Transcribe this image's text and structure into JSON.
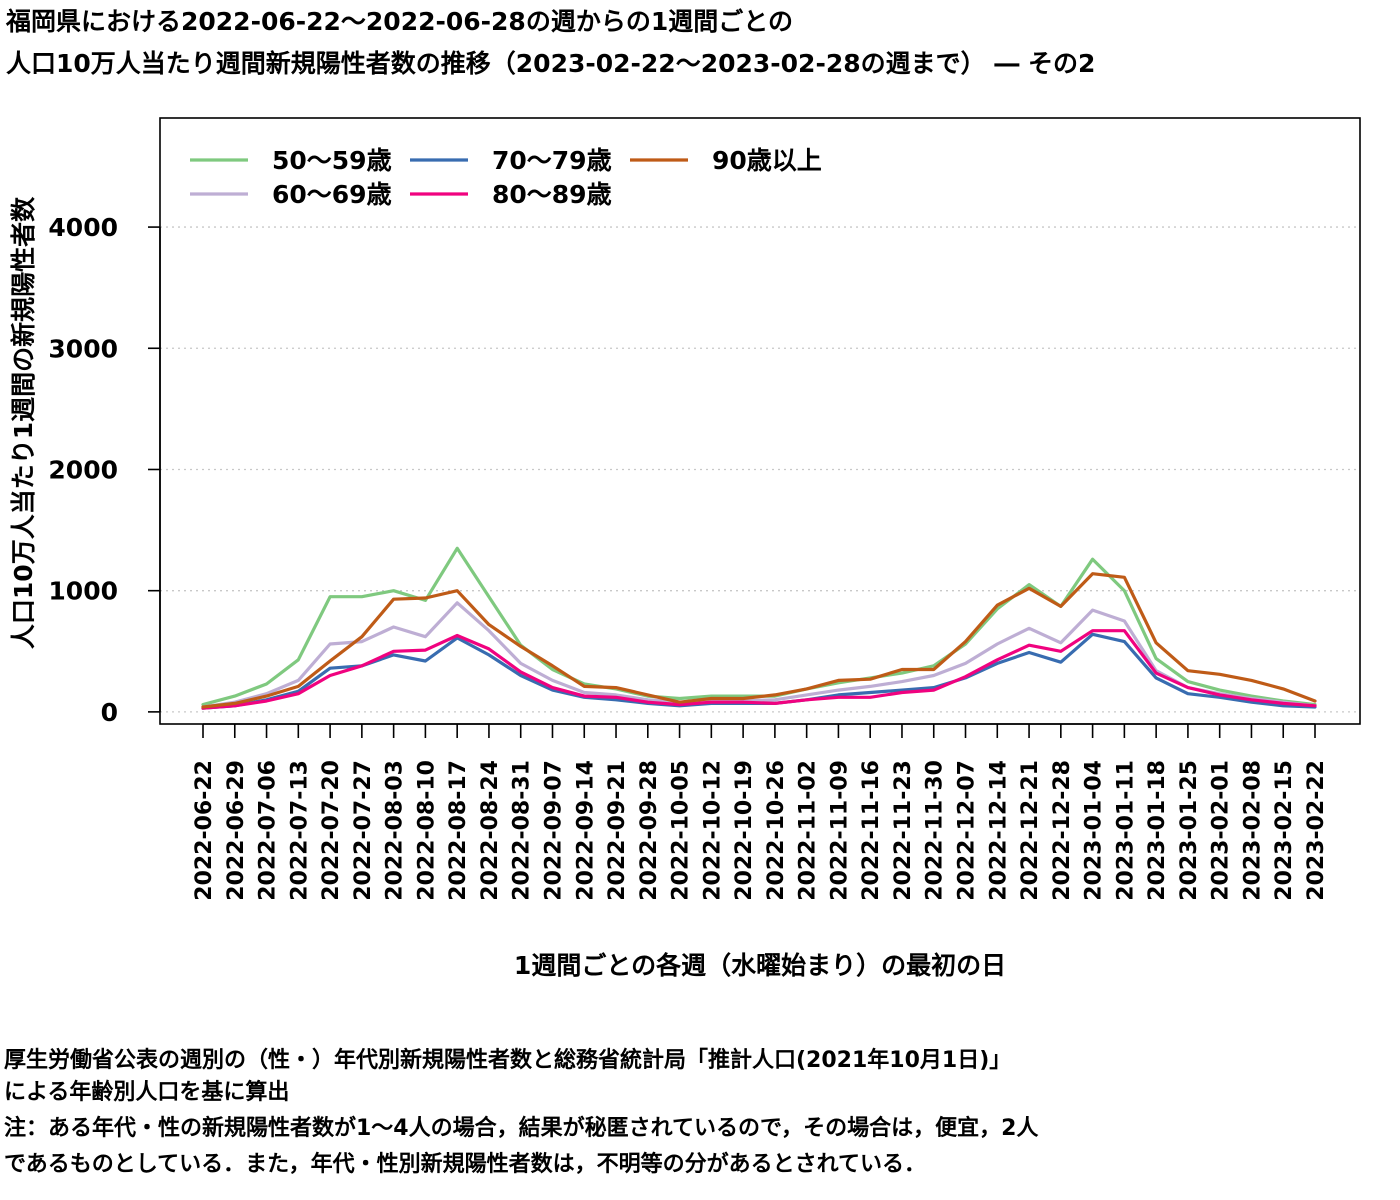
{
  "title_line1": "福岡県における2022-06-22～2022-06-28の週からの1週間ごとの",
  "title_line2": "人口10万人当たり週間新規陽性者数の推移（2023-02-22～2023-02-28の週まで） ― その2",
  "notes": [
    "厚生労働省公表の週別の（性・）年代別新規陽性者数と総務省統計局「推計人口(2021年10月1日)」",
    "による年齢別人口を基に算出",
    "注：ある年代・性の新規陽性者数が1～4人の場合，結果が秘匿されているので，その場合は，便宜，2人",
    "であるものとしている．また，年代・性別新規陽性者数は，不明等の分があるとされている．"
  ],
  "chart_data": {
    "type": "line",
    "xlabel": "1週間ごとの各週（水曜始まり）の最初の日",
    "ylabel": "人口10万人当たり1週間の新規陽性者数",
    "ylim": [
      -100,
      4900
    ],
    "yticks": [
      0,
      1000,
      2000,
      3000,
      4000
    ],
    "grid": "horizontal dotted",
    "legend_position": "top-left",
    "x": [
      "2022-06-22",
      "2022-06-29",
      "2022-07-06",
      "2022-07-13",
      "2022-07-20",
      "2022-07-27",
      "2022-08-03",
      "2022-08-10",
      "2022-08-17",
      "2022-08-24",
      "2022-08-31",
      "2022-09-07",
      "2022-09-14",
      "2022-09-21",
      "2022-09-28",
      "2022-10-05",
      "2022-10-12",
      "2022-10-19",
      "2022-10-26",
      "2022-11-02",
      "2022-11-09",
      "2022-11-16",
      "2022-11-23",
      "2022-11-30",
      "2022-12-07",
      "2022-12-14",
      "2022-12-21",
      "2022-12-28",
      "2023-01-04",
      "2023-01-11",
      "2023-01-18",
      "2023-01-25",
      "2023-02-01",
      "2023-02-08",
      "2023-02-15",
      "2023-02-22"
    ],
    "series": [
      {
        "name": "50～59歳",
        "color": "#7fc97f",
        "values": [
          60,
          130,
          230,
          430,
          950,
          950,
          1000,
          920,
          1350,
          950,
          550,
          350,
          230,
          190,
          130,
          110,
          130,
          130,
          130,
          190,
          240,
          280,
          320,
          380,
          560,
          850,
          1050,
          870,
          1260,
          1000,
          440,
          250,
          180,
          130,
          90,
          60
        ]
      },
      {
        "name": "60～69歳",
        "color": "#beaed4",
        "values": [
          40,
          80,
          150,
          260,
          560,
          580,
          700,
          620,
          900,
          670,
          400,
          260,
          160,
          140,
          100,
          80,
          90,
          90,
          100,
          140,
          180,
          210,
          250,
          300,
          400,
          560,
          690,
          570,
          840,
          750,
          340,
          200,
          150,
          110,
          80,
          50
        ]
      },
      {
        "name": "70～79歳",
        "color": "#386cb0",
        "values": [
          30,
          50,
          100,
          170,
          360,
          380,
          470,
          420,
          610,
          470,
          300,
          180,
          120,
          100,
          70,
          50,
          70,
          70,
          70,
          100,
          140,
          160,
          180,
          200,
          280,
          400,
          490,
          410,
          640,
          580,
          280,
          150,
          120,
          80,
          50,
          40
        ]
      },
      {
        "name": "80～89歳",
        "color": "#f0027f",
        "values": [
          30,
          50,
          90,
          150,
          300,
          380,
          500,
          510,
          630,
          520,
          330,
          200,
          130,
          120,
          80,
          60,
          80,
          80,
          70,
          100,
          120,
          120,
          160,
          180,
          290,
          430,
          550,
          500,
          670,
          670,
          320,
          200,
          140,
          100,
          70,
          50
        ]
      },
      {
        "name": "90歳以上",
        "color": "#bf5b17",
        "values": [
          40,
          70,
          130,
          210,
          420,
          620,
          930,
          940,
          1000,
          720,
          540,
          380,
          210,
          200,
          140,
          80,
          110,
          110,
          140,
          190,
          260,
          270,
          350,
          350,
          580,
          880,
          1020,
          870,
          1140,
          1110,
          570,
          340,
          310,
          260,
          190,
          90
        ]
      }
    ]
  }
}
